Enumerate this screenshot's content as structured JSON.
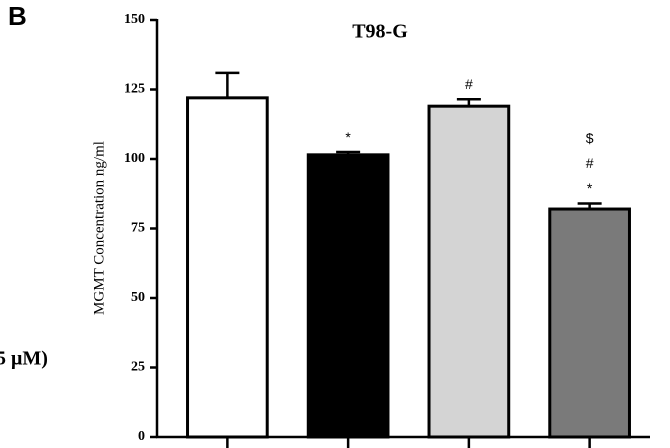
{
  "panel_label": "B",
  "side_text": "5 μM)",
  "chart_data": {
    "type": "bar",
    "title": "T98-G",
    "y_label": "MGMT Concentration ng/ml",
    "categories": [
      null,
      null,
      null,
      null
    ],
    "values": [
      122,
      101.5,
      119,
      82
    ],
    "errors": [
      9,
      1,
      2.5,
      2
    ],
    "colors": [
      "#ffffff",
      "#000000",
      "#d4d4d4",
      "#7a7a7a"
    ],
    "value_annotations": [
      [],
      [
        "*"
      ],
      [
        "#"
      ],
      [
        "$",
        "#",
        "*"
      ]
    ],
    "ylim": [
      0,
      150
    ],
    "yticks": [
      0,
      25,
      50,
      75,
      100,
      125,
      150
    ],
    "grid": false
  }
}
